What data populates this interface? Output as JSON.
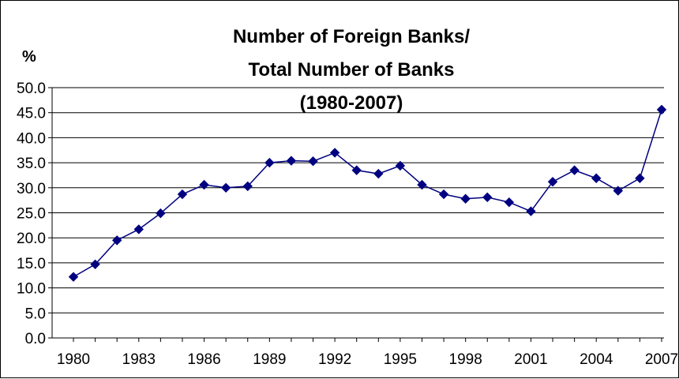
{
  "chart_data": {
    "type": "line",
    "title_lines": [
      "Number of Foreign Banks/",
      "Total Number of Banks",
      "(1980-2007)"
    ],
    "ylabel": "%",
    "xlabel": "",
    "ylim": [
      0,
      50
    ],
    "y_ticks": [
      "0.0",
      "5.0",
      "10.0",
      "15.0",
      "20.0",
      "25.0",
      "30.0",
      "35.0",
      "40.0",
      "45.0",
      "50.0"
    ],
    "x_tick_labels": [
      "1980",
      "1983",
      "1986",
      "1989",
      "1992",
      "1995",
      "1998",
      "2001",
      "2004",
      "2007"
    ],
    "x": [
      1980,
      1981,
      1982,
      1983,
      1984,
      1985,
      1986,
      1987,
      1988,
      1989,
      1990,
      1991,
      1992,
      1993,
      1994,
      1995,
      1996,
      1997,
      1998,
      1999,
      2000,
      2001,
      2002,
      2003,
      2004,
      2005,
      2006,
      2007
    ],
    "series": [
      {
        "values": [
          12.2,
          14.7,
          19.5,
          21.7,
          24.9,
          28.7,
          30.6,
          30.0,
          30.3,
          35.0,
          35.4,
          35.3,
          37.0,
          33.5,
          32.8,
          34.4,
          30.6,
          28.7,
          27.8,
          28.1,
          27.1,
          25.3,
          31.2,
          33.5,
          31.9,
          29.4,
          31.9,
          45.6
        ],
        "color": "#000080"
      }
    ],
    "grid": true,
    "legend": "none"
  }
}
